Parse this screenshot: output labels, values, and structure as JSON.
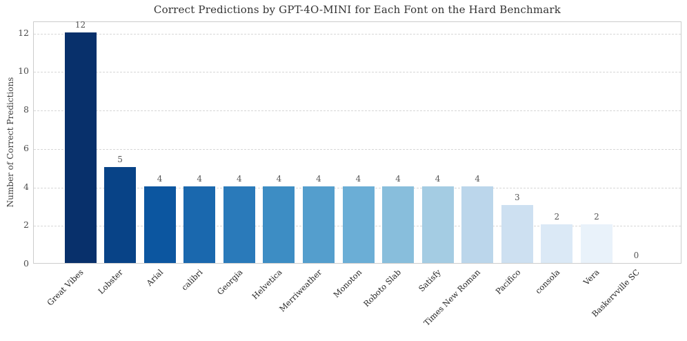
{
  "chart_data": {
    "type": "bar",
    "title": "Correct Predictions by GPT-4O-MINI for Each Font on the Hard Benchmark",
    "xlabel": "",
    "ylabel": "Number of Correct Predictions",
    "categories": [
      "Great Vibes",
      "Lobster",
      "Arial",
      "calibri",
      "Georgia",
      "Helvetica",
      "Merriweather",
      "Monoton",
      "Roboto Slab",
      "Satisfy",
      "Times New Roman",
      "Pacifico",
      "consola",
      "Vera",
      "Baskervville SC"
    ],
    "values": [
      12,
      5,
      4,
      4,
      4,
      4,
      4,
      4,
      4,
      4,
      4,
      3,
      2,
      2,
      0
    ],
    "bar_colors": [
      "#08306b",
      "#084387",
      "#0c56a0",
      "#1a68ae",
      "#2a7aba",
      "#3d8dc4",
      "#549ecd",
      "#6baed6",
      "#88bedc",
      "#a4cce3",
      "#bbd6eb",
      "#cde0f1",
      "#dbe9f6",
      "#e9f2fa",
      "#f7fbff"
    ],
    "yticks": [
      0,
      2,
      4,
      6,
      8,
      10,
      12
    ],
    "ylim": [
      0,
      12.6
    ],
    "grid": {
      "axis": "y",
      "style": "dashed",
      "color": "#d6d6d6"
    },
    "value_labels_shown": true,
    "legend": null,
    "colors": {
      "background": "#ffffff",
      "axis_border": "#cccccc",
      "gridline": "#d6d6d6",
      "title_text": "#323232",
      "ytick_text": "#4a4a4a",
      "xtick_text": "#262626",
      "value_label_text": "#555555"
    }
  }
}
